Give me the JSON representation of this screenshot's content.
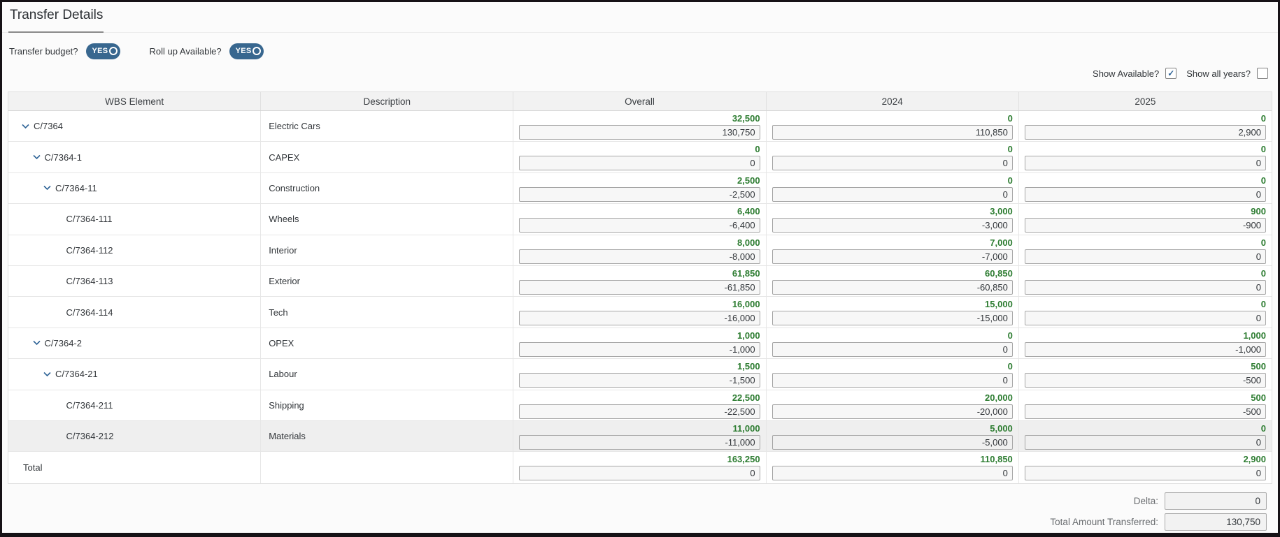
{
  "title": "Transfer Details",
  "toolbar": {
    "transfer_budget_label": "Transfer budget?",
    "rollup_label": "Roll up Available?",
    "switch_on_label": "YES",
    "show_available_label": "Show Available?",
    "show_available_checked": true,
    "show_all_years_label": "Show all years?",
    "show_all_years_checked": false
  },
  "table": {
    "columns": [
      "WBS Element",
      "Description",
      "Overall",
      "2024",
      "2025"
    ],
    "rows": [
      {
        "wbs": "C/7364",
        "level": 0,
        "expandable": true,
        "desc": "Electric Cars",
        "overall": {
          "available": "32,500",
          "value": "130,750"
        },
        "y2024": {
          "available": "0",
          "value": "110,850"
        },
        "y2025": {
          "available": "0",
          "value": "2,900"
        },
        "highlight": false,
        "total": false
      },
      {
        "wbs": "C/7364-1",
        "level": 1,
        "expandable": true,
        "desc": "CAPEX",
        "overall": {
          "available": "0",
          "value": "0"
        },
        "y2024": {
          "available": "0",
          "value": "0"
        },
        "y2025": {
          "available": "0",
          "value": "0"
        },
        "highlight": false,
        "total": false
      },
      {
        "wbs": "C/7364-11",
        "level": 2,
        "expandable": true,
        "desc": "Construction",
        "overall": {
          "available": "2,500",
          "value": "-2,500"
        },
        "y2024": {
          "available": "0",
          "value": "0"
        },
        "y2025": {
          "available": "0",
          "value": "0"
        },
        "highlight": false,
        "total": false
      },
      {
        "wbs": "C/7364-111",
        "level": 3,
        "expandable": false,
        "desc": "Wheels",
        "overall": {
          "available": "6,400",
          "value": "-6,400"
        },
        "y2024": {
          "available": "3,000",
          "value": "-3,000"
        },
        "y2025": {
          "available": "900",
          "value": "-900"
        },
        "highlight": false,
        "total": false
      },
      {
        "wbs": "C/7364-112",
        "level": 3,
        "expandable": false,
        "desc": "Interior",
        "overall": {
          "available": "8,000",
          "value": "-8,000"
        },
        "y2024": {
          "available": "7,000",
          "value": "-7,000"
        },
        "y2025": {
          "available": "0",
          "value": "0"
        },
        "highlight": false,
        "total": false
      },
      {
        "wbs": "C/7364-113",
        "level": 3,
        "expandable": false,
        "desc": "Exterior",
        "overall": {
          "available": "61,850",
          "value": "-61,850"
        },
        "y2024": {
          "available": "60,850",
          "value": "-60,850"
        },
        "y2025": {
          "available": "0",
          "value": "0"
        },
        "highlight": false,
        "total": false
      },
      {
        "wbs": "C/7364-114",
        "level": 3,
        "expandable": false,
        "desc": "Tech",
        "overall": {
          "available": "16,000",
          "value": "-16,000"
        },
        "y2024": {
          "available": "15,000",
          "value": "-15,000"
        },
        "y2025": {
          "available": "0",
          "value": "0"
        },
        "highlight": false,
        "total": false
      },
      {
        "wbs": "C/7364-2",
        "level": 1,
        "expandable": true,
        "desc": "OPEX",
        "overall": {
          "available": "1,000",
          "value": "-1,000"
        },
        "y2024": {
          "available": "0",
          "value": "0"
        },
        "y2025": {
          "available": "1,000",
          "value": "-1,000"
        },
        "highlight": false,
        "total": false
      },
      {
        "wbs": "C/7364-21",
        "level": 2,
        "expandable": true,
        "desc": "Labour",
        "overall": {
          "available": "1,500",
          "value": "-1,500"
        },
        "y2024": {
          "available": "0",
          "value": "0"
        },
        "y2025": {
          "available": "500",
          "value": "-500"
        },
        "highlight": false,
        "total": false
      },
      {
        "wbs": "C/7364-211",
        "level": 3,
        "expandable": false,
        "desc": "Shipping",
        "overall": {
          "available": "22,500",
          "value": "-22,500"
        },
        "y2024": {
          "available": "20,000",
          "value": "-20,000"
        },
        "y2025": {
          "available": "500",
          "value": "-500"
        },
        "highlight": false,
        "total": false
      },
      {
        "wbs": "C/7364-212",
        "level": 3,
        "expandable": false,
        "desc": "Materials",
        "overall": {
          "available": "11,000",
          "value": "-11,000"
        },
        "y2024": {
          "available": "5,000",
          "value": "-5,000"
        },
        "y2025": {
          "available": "0",
          "value": "0"
        },
        "highlight": true,
        "total": false
      },
      {
        "wbs": "Total",
        "level": 0,
        "expandable": false,
        "desc": "",
        "overall": {
          "available": "163,250",
          "value": "0"
        },
        "y2024": {
          "available": "110,850",
          "value": "0"
        },
        "y2025": {
          "available": "2,900",
          "value": "0"
        },
        "highlight": false,
        "total": true
      }
    ]
  },
  "footer": {
    "delta_label": "Delta:",
    "delta_value": "0",
    "total_label": "Total Amount Transferred:",
    "total_value": "130,750"
  },
  "colors": {
    "positive_green": "#2e7d32",
    "switch_blue": "#38678f",
    "accent_blue": "#2f6497",
    "frame_border": "#161216"
  }
}
